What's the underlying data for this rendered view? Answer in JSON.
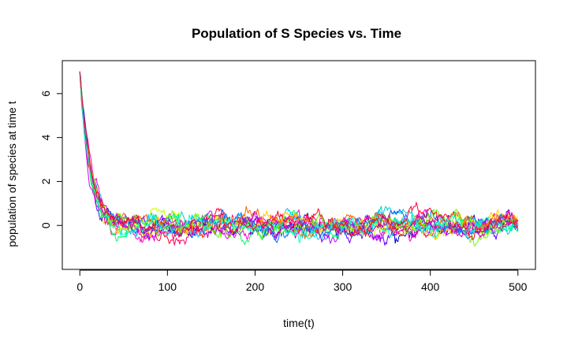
{
  "chart_data": {
    "type": "line",
    "title": "Population of S Species vs. Time",
    "xlabel": "time(t)",
    "ylabel": "population of species at time t",
    "xlim": [
      -20,
      520
    ],
    "ylim": [
      -2,
      7.5
    ],
    "xticks": [
      0,
      100,
      200,
      300,
      400,
      500
    ],
    "yticks": [
      0,
      2,
      4,
      6
    ],
    "grid": false,
    "legend": "none",
    "series_count": 16,
    "start_value": 7,
    "decay_rate": 0.08,
    "noise_scale": 0.11,
    "palette": [
      "#ff0000",
      "#ff6600",
      "#ffcc00",
      "#ccff00",
      "#66ff00",
      "#00ff00",
      "#00ff66",
      "#00ffcc",
      "#00ccff",
      "#0066ff",
      "#0000ff",
      "#6600ff",
      "#cc00ff",
      "#ff00cc",
      "#ff0066",
      "#ff0033"
    ],
    "series": [
      {
        "color": "#0000cc"
      },
      {
        "color": "#ff00cc"
      },
      {
        "color": "#00cccc"
      },
      {
        "color": "#ccff00"
      },
      {
        "color": "#6600ff"
      },
      {
        "color": "#ff0066"
      },
      {
        "color": "#00ff66"
      },
      {
        "color": "#00ccff"
      },
      {
        "color": "#cc00ff"
      },
      {
        "color": "#ffcc00"
      },
      {
        "color": "#0066ff"
      },
      {
        "color": "#ff6600"
      },
      {
        "color": "#66ff00"
      },
      {
        "color": "#cc00aa"
      },
      {
        "color": "#00ffcc"
      },
      {
        "color": "#ff0033"
      }
    ]
  }
}
